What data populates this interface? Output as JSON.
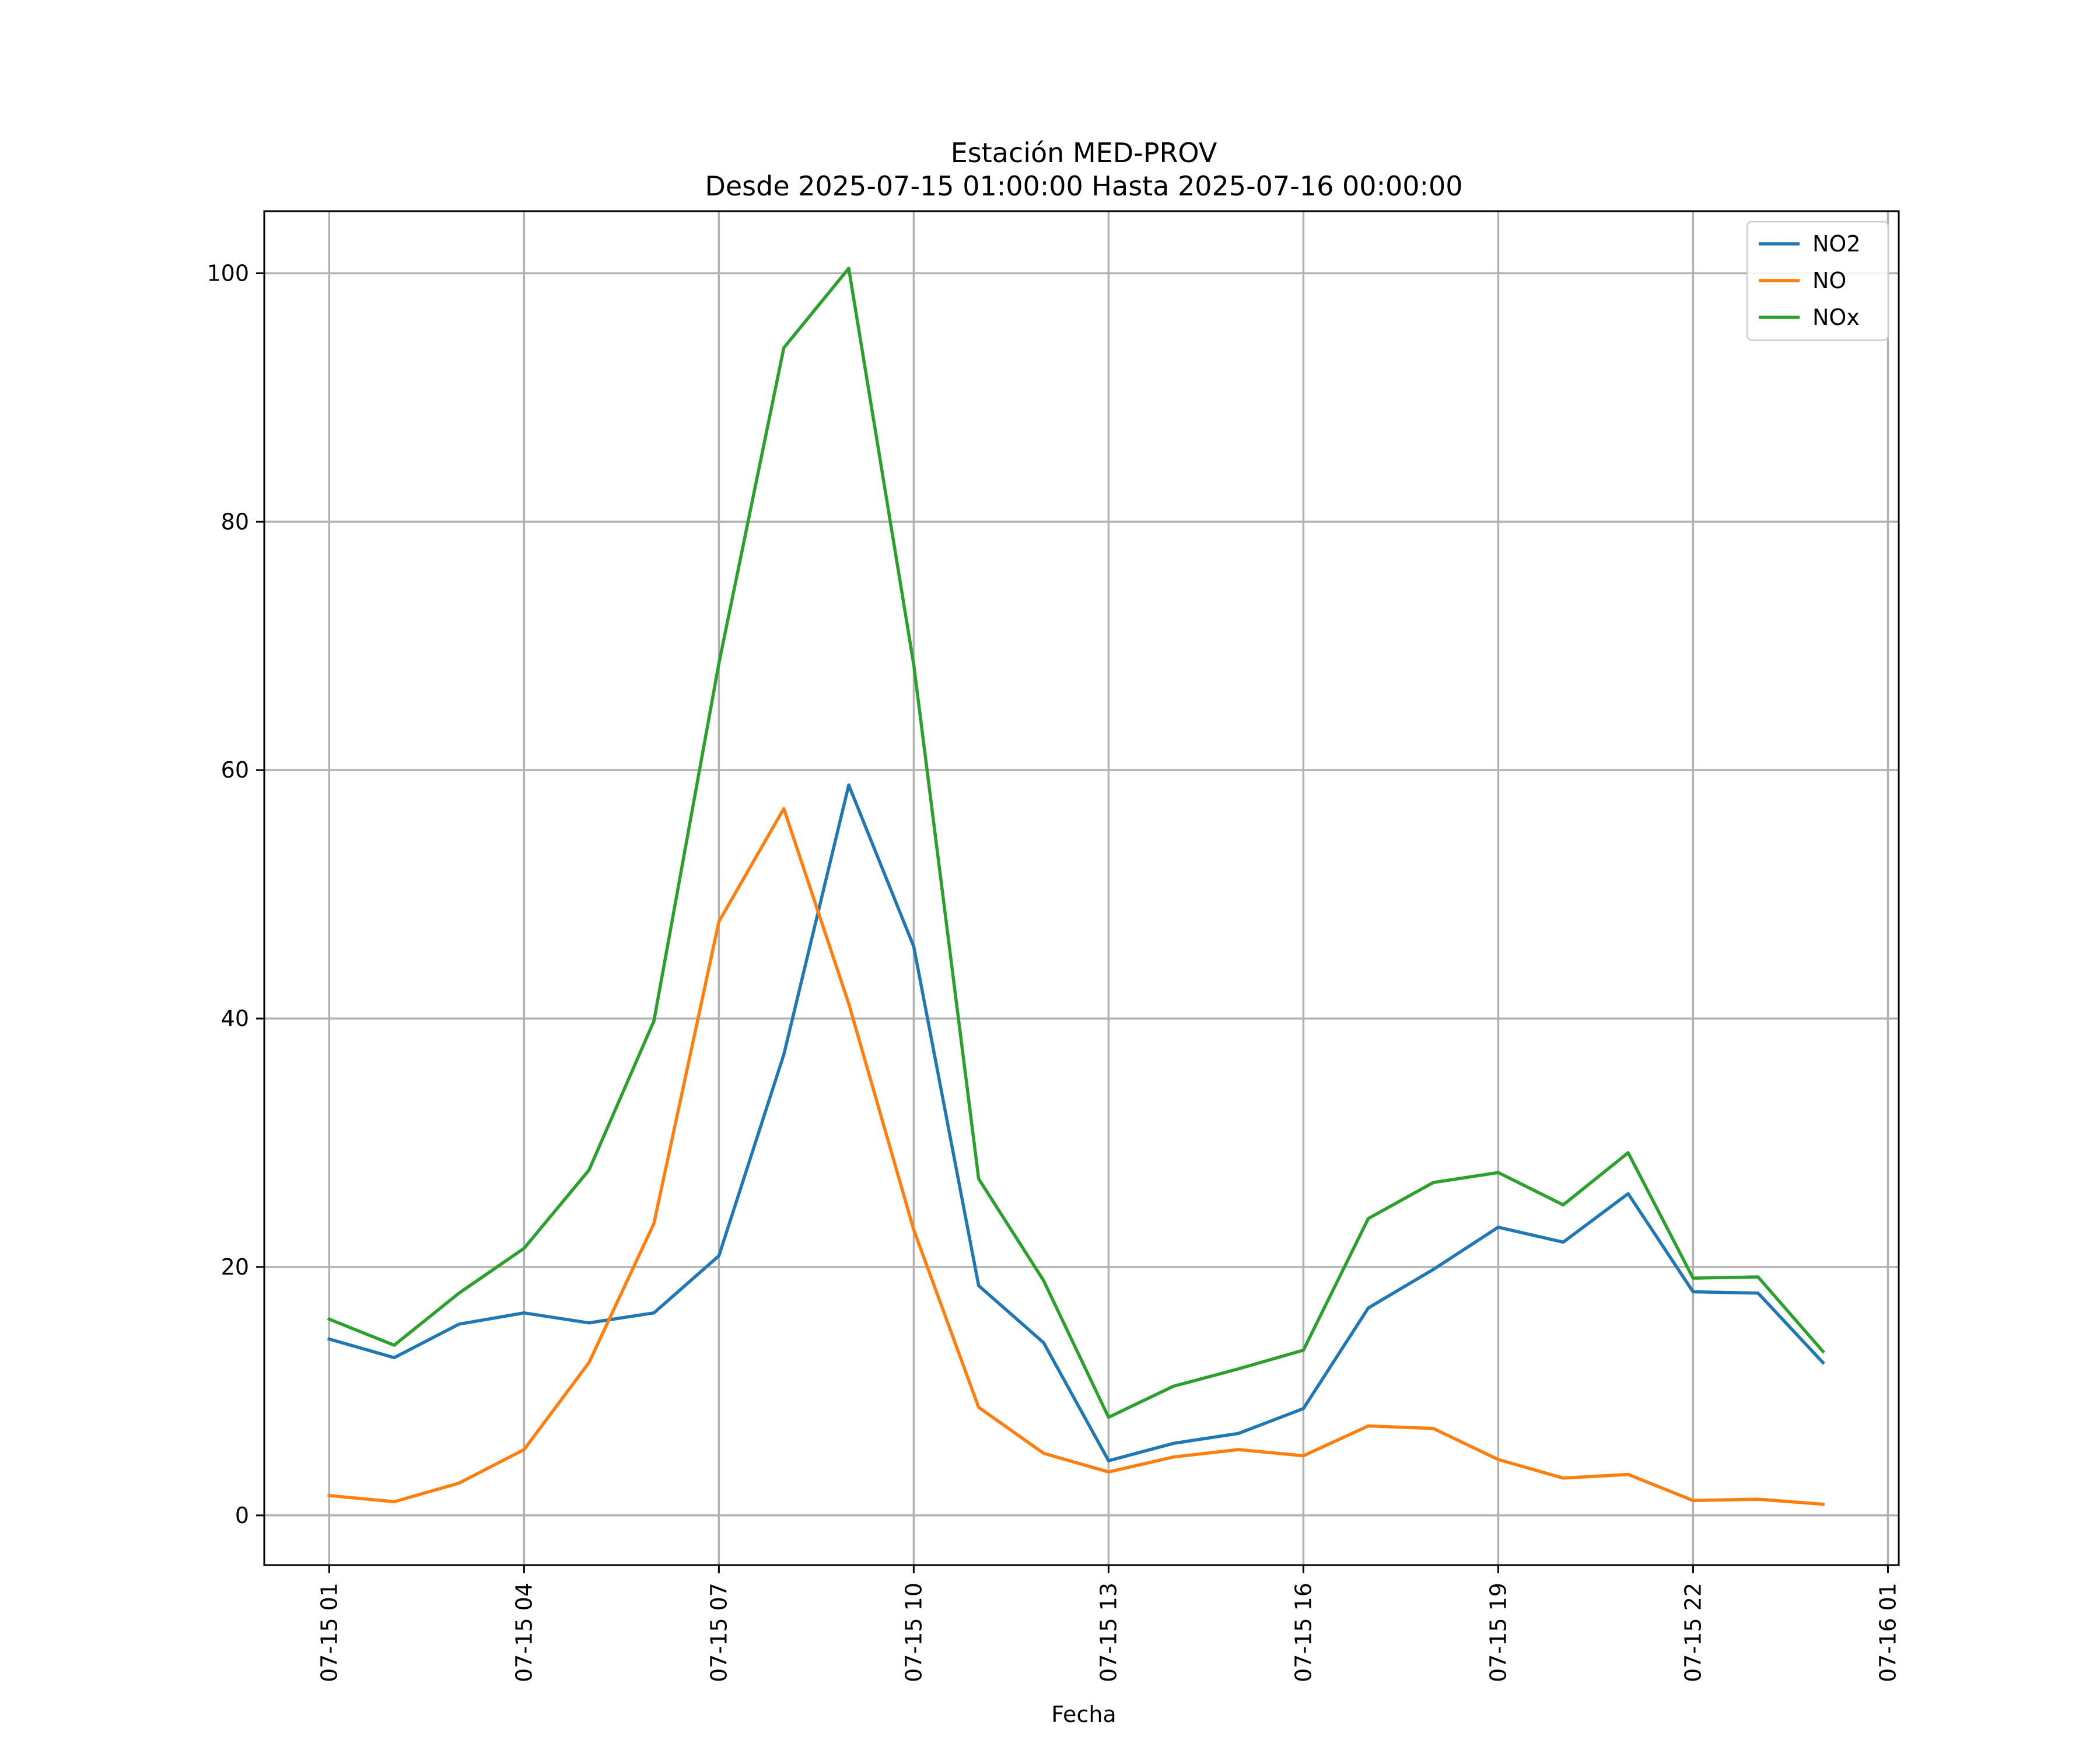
{
  "chart_data": {
    "type": "line",
    "title": [
      "Estación MED-PROV",
      "Desde 2025-07-15 01:00:00 Hasta 2025-07-16 00:00:00"
    ],
    "xlabel": "Fecha",
    "ylabel": "",
    "x": [
      "2025-07-15 01:00",
      "2025-07-15 02:00",
      "2025-07-15 03:00",
      "2025-07-15 04:00",
      "2025-07-15 05:00",
      "2025-07-15 06:00",
      "2025-07-15 07:00",
      "2025-07-15 08:00",
      "2025-07-15 09:00",
      "2025-07-15 10:00",
      "2025-07-15 11:00",
      "2025-07-15 12:00",
      "2025-07-15 13:00",
      "2025-07-15 14:00",
      "2025-07-15 15:00",
      "2025-07-15 16:00",
      "2025-07-15 17:00",
      "2025-07-15 18:00",
      "2025-07-15 19:00",
      "2025-07-15 20:00",
      "2025-07-15 21:00",
      "2025-07-15 22:00",
      "2025-07-15 23:00",
      "2025-07-16 00:00"
    ],
    "xlim": [
      "2025-07-15 00:00",
      "2025-07-16 01:10"
    ],
    "ylim": [
      -4,
      105
    ],
    "x_ticks": [
      {
        "value": "2025-07-15 01:00",
        "label": "07-15 01"
      },
      {
        "value": "2025-07-15 04:00",
        "label": "07-15 04"
      },
      {
        "value": "2025-07-15 07:00",
        "label": "07-15 07"
      },
      {
        "value": "2025-07-15 10:00",
        "label": "07-15 10"
      },
      {
        "value": "2025-07-15 13:00",
        "label": "07-15 13"
      },
      {
        "value": "2025-07-15 16:00",
        "label": "07-15 16"
      },
      {
        "value": "2025-07-15 19:00",
        "label": "07-15 19"
      },
      {
        "value": "2025-07-15 22:00",
        "label": "07-15 22"
      },
      {
        "value": "2025-07-16 01:00",
        "label": "07-16 01"
      }
    ],
    "y_ticks": [
      0,
      20,
      40,
      60,
      80,
      100
    ],
    "grid": true,
    "legend_position": "top-right",
    "series": [
      {
        "name": "NO2",
        "color": "#1f77b4",
        "values": [
          14.2,
          12.7,
          15.4,
          16.3,
          15.5,
          16.3,
          20.9,
          37.1,
          58.8,
          45.8,
          18.5,
          13.9,
          4.4,
          5.8,
          6.6,
          8.6,
          16.7,
          19.8,
          23.2,
          22.0,
          25.9,
          18.0,
          17.9,
          12.3
        ]
      },
      {
        "name": "NO",
        "color": "#ff7f0e",
        "values": [
          1.6,
          1.1,
          2.6,
          5.3,
          12.3,
          23.5,
          47.8,
          56.9,
          41.2,
          23.0,
          8.7,
          5.0,
          3.5,
          4.7,
          5.3,
          4.8,
          7.2,
          7.0,
          4.5,
          3.0,
          3.3,
          1.2,
          1.3,
          0.9
        ]
      },
      {
        "name": "NOx",
        "color": "#2ca02c",
        "values": [
          15.8,
          13.7,
          17.9,
          21.5,
          27.8,
          39.8,
          68.6,
          94.0,
          100.4,
          68.5,
          27.1,
          18.9,
          7.9,
          10.4,
          11.8,
          13.3,
          23.9,
          26.8,
          27.6,
          25.0,
          29.2,
          19.1,
          19.2,
          13.2
        ]
      }
    ]
  }
}
